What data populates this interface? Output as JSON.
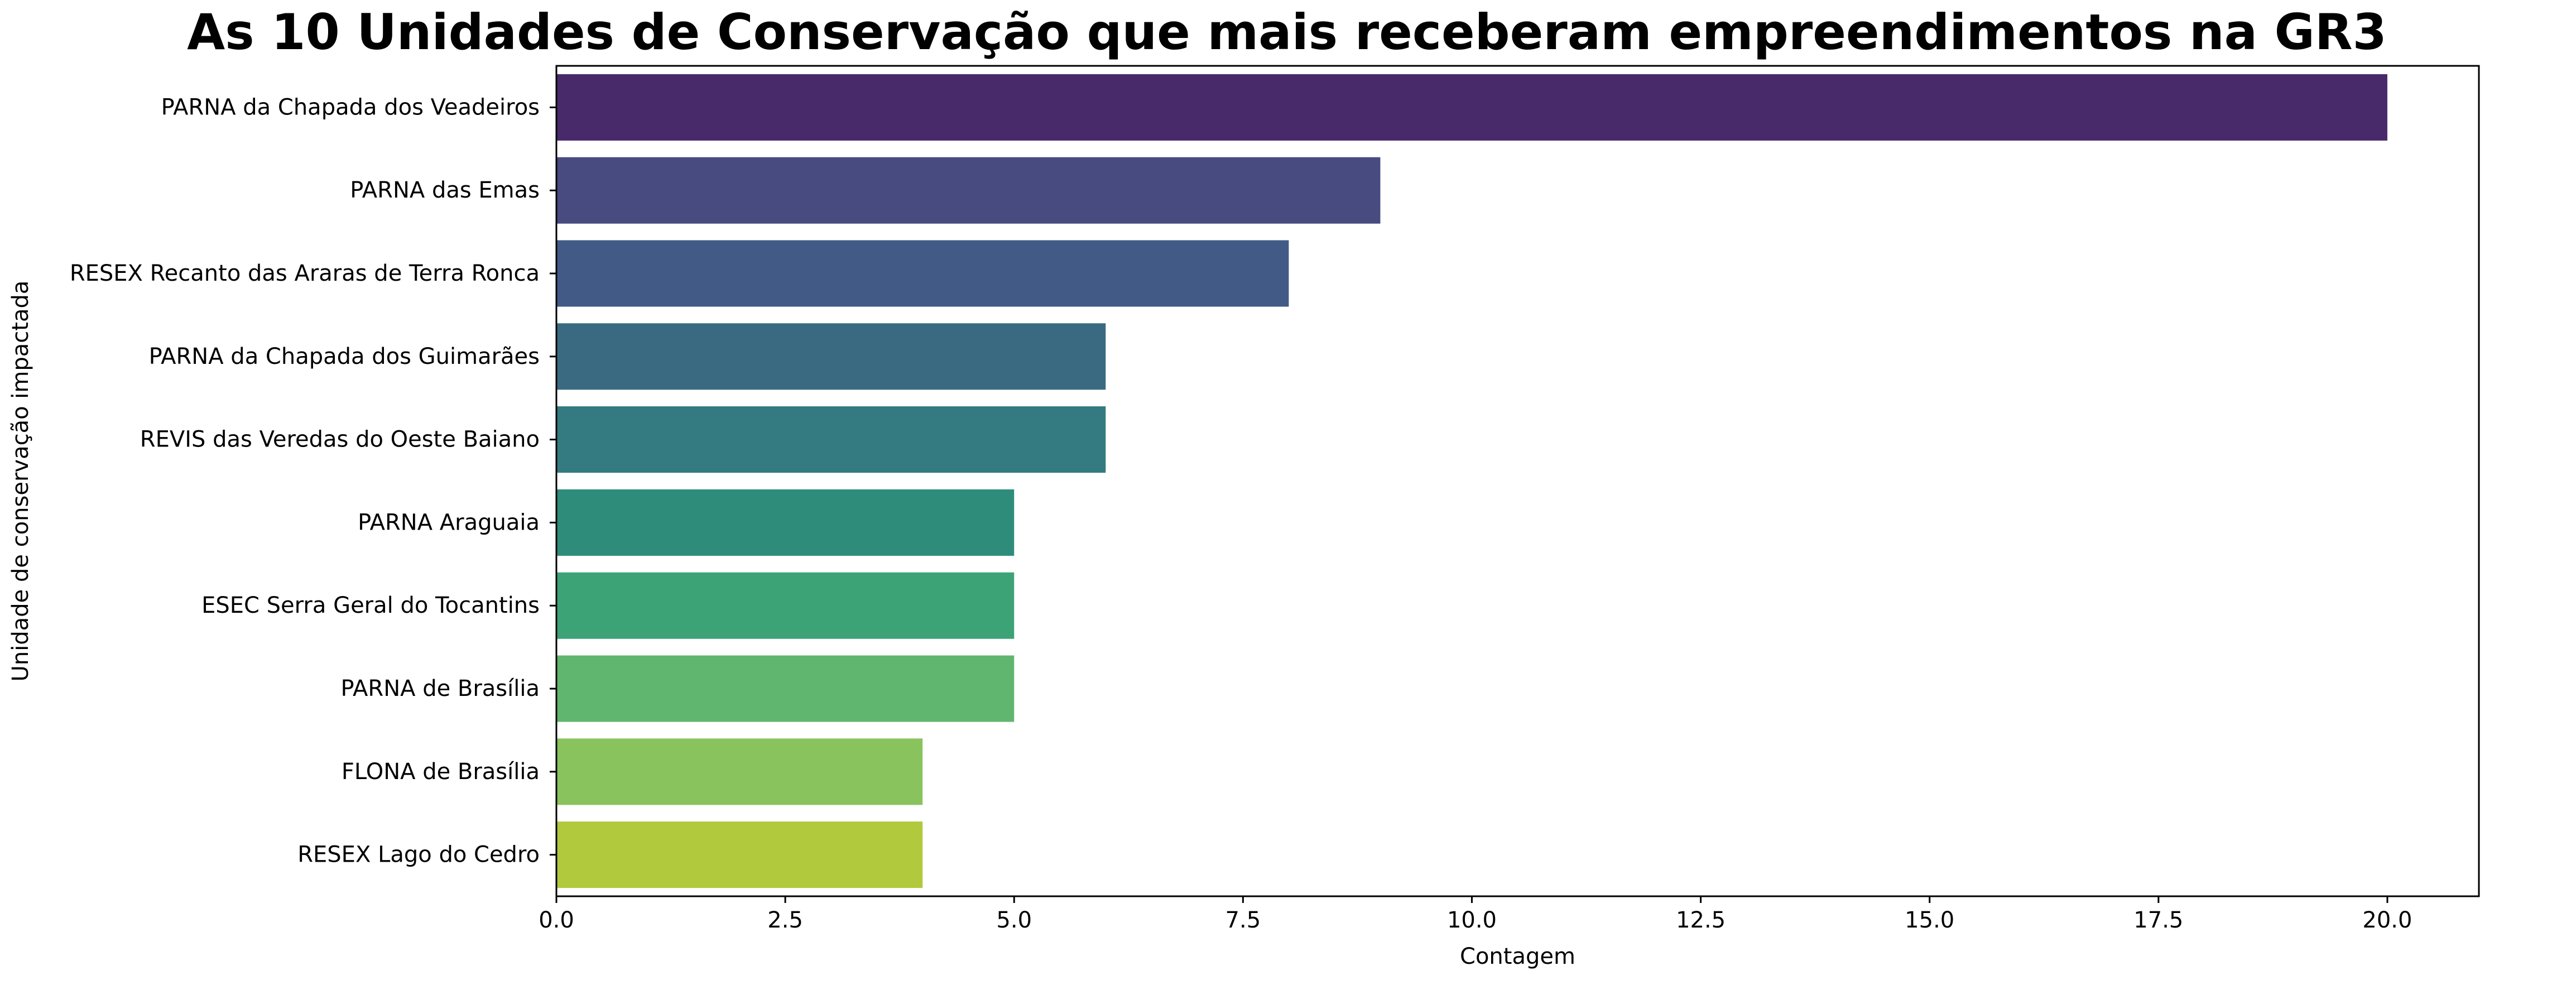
{
  "chart_data": {
    "type": "bar",
    "orientation": "horizontal",
    "title": "As 10 Unidades de Conservação que mais receberam empreendimentos na GR3",
    "xlabel": "Contagem",
    "ylabel": "Unidade de conservação impactada",
    "categories": [
      "PARNA da Chapada dos Veadeiros",
      "PARNA das Emas",
      "RESEX Recanto das Araras de Terra Ronca",
      "PARNA da Chapada dos Guimarães",
      "REVIS das Veredas do Oeste Baiano",
      "PARNA Araguaia",
      "ESEC Serra Geral do Tocantins",
      "PARNA de Brasília",
      "FLONA de Brasília",
      "RESEX Lago do Cedro"
    ],
    "values": [
      20,
      9,
      8,
      6,
      6,
      5,
      5,
      5,
      4,
      4
    ],
    "colors": [
      "#482a6a",
      "#474b7f",
      "#425b86",
      "#3a6a82",
      "#337b80",
      "#2e8c7b",
      "#3ca377",
      "#60b66f",
      "#89c35d",
      "#b1c93c"
    ],
    "xlim": [
      0,
      21
    ],
    "xticks": [
      0.0,
      2.5,
      5.0,
      7.5,
      10.0,
      12.5,
      15.0,
      17.5,
      20.0
    ],
    "xtick_labels": [
      "0.0",
      "2.5",
      "5.0",
      "7.5",
      "10.0",
      "12.5",
      "15.0",
      "17.5",
      "20.0"
    ],
    "grid": false,
    "legend": "none"
  }
}
